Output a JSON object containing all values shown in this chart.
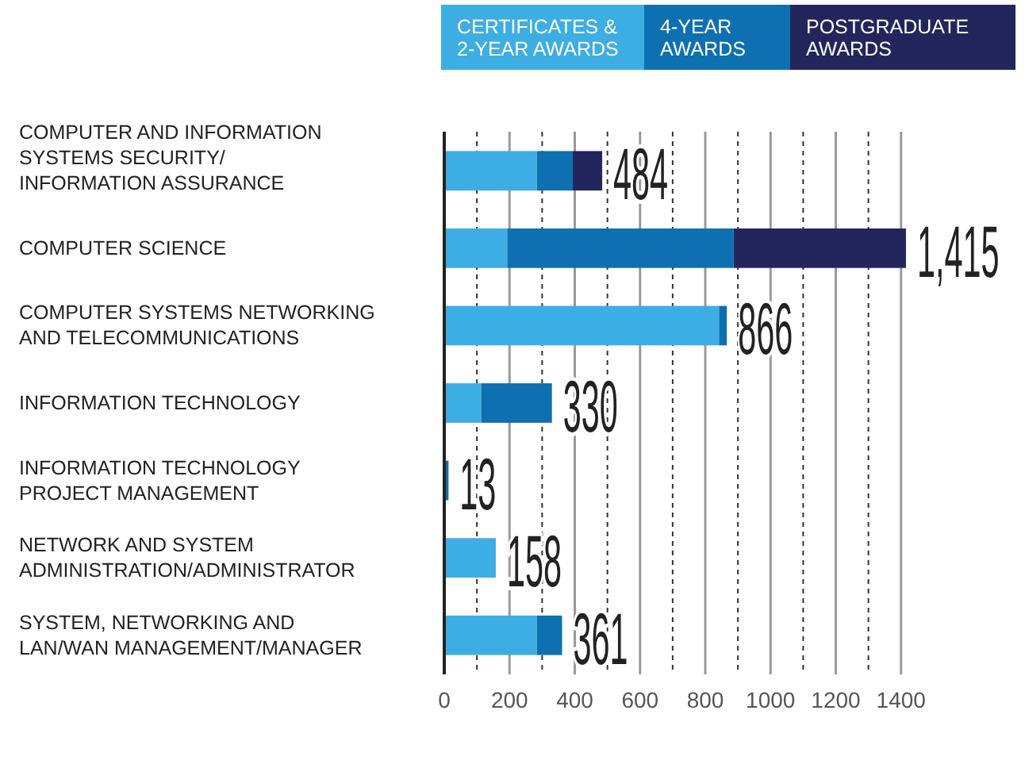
{
  "chart_data": {
    "type": "bar",
    "orientation": "horizontal",
    "stacked": true,
    "categories": [
      "COMPUTER AND INFORMATION\nSYSTEMS SECURITY/\nINFORMATION ASSURANCE",
      "COMPUTER SCIENCE",
      "COMPUTER SYSTEMS NETWORKING\nAND TELECOMMUNICATIONS",
      "INFORMATION TECHNOLOGY",
      "INFORMATION TECHNOLOGY\nPROJECT MANAGEMENT",
      "NETWORK AND SYSTEM\nADMINISTRATION/ADMINISTRATOR",
      "SYSTEM, NETWORKING AND\nLAN/WAN MANAGEMENT/MANAGER"
    ],
    "series": [
      {
        "name": "CERTIFICATES &\n2-YEAR AWARDS",
        "color": "#3daee3",
        "values": [
          284,
          193,
          842,
          113,
          0,
          158,
          284
        ]
      },
      {
        "name": "4-YEAR\nAWARDS",
        "color": "#0e70b1",
        "values": [
          110,
          694,
          24,
          217,
          13,
          0,
          77
        ]
      },
      {
        "name": "POSTGRADUATE\nAWARDS",
        "color": "#22265c",
        "values": [
          90,
          528,
          0,
          0,
          0,
          0,
          0
        ]
      }
    ],
    "totals": [
      "484",
      "1,415",
      "866",
      "330",
      "13",
      "158",
      "361"
    ],
    "xlim": [
      0,
      1420
    ],
    "xticks": [
      0,
      {
        "value": 100,
        "label": null
      },
      200,
      {
        "value": 300,
        "label": null
      },
      400,
      {
        "value": 500,
        "label": null
      },
      600,
      {
        "value": 700,
        "label": null
      },
      800,
      {
        "value": 900,
        "label": null
      },
      1000,
      {
        "value": 1100,
        "label": null
      },
      1200,
      {
        "value": 1300,
        "label": null
      },
      1400
    ],
    "grid": "x",
    "legend": "top right"
  }
}
